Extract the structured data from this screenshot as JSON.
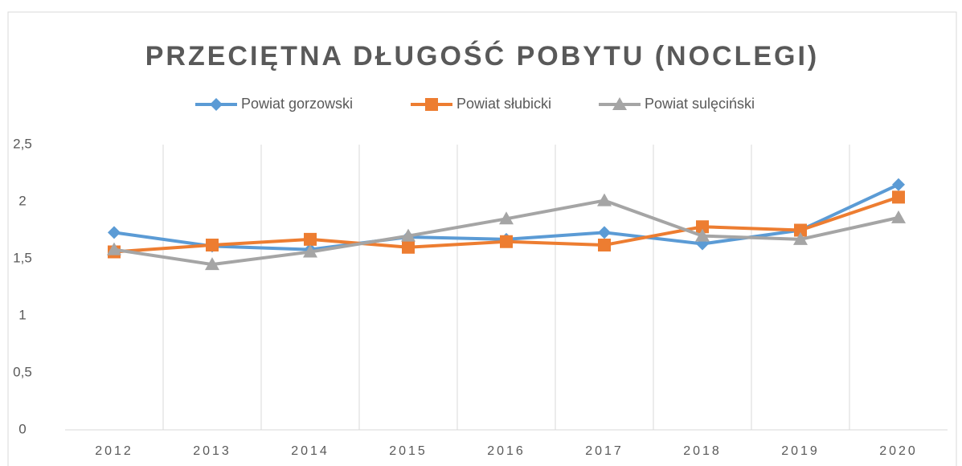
{
  "chart_data": {
    "type": "line",
    "title": "PRZECIĘTNA DŁUGOŚĆ POBYTU (NOCLEGI)",
    "categories": [
      "2012",
      "2013",
      "2014",
      "2015",
      "2016",
      "2017",
      "2018",
      "2019",
      "2020"
    ],
    "series": [
      {
        "name": "Powiat gorzowski",
        "color": "#5b9bd5",
        "marker": "diamond",
        "values": [
          1.73,
          1.61,
          1.58,
          1.69,
          1.67,
          1.73,
          1.63,
          1.75,
          2.15
        ]
      },
      {
        "name": "Powiat słubicki",
        "color": "#ed7d31",
        "marker": "square",
        "values": [
          1.56,
          1.62,
          1.67,
          1.6,
          1.65,
          1.62,
          1.78,
          1.75,
          2.04
        ]
      },
      {
        "name": "Powiat sulęciński",
        "color": "#a5a5a5",
        "marker": "triangle",
        "values": [
          1.58,
          1.45,
          1.56,
          1.7,
          1.85,
          2.01,
          1.7,
          1.67,
          1.86
        ]
      }
    ],
    "ylim": [
      0,
      2.5
    ],
    "yticks": [
      0,
      {
        "value": 0.5,
        "label": "0,5"
      },
      1,
      {
        "value": 1.5,
        "label": "1,5"
      },
      2,
      {
        "value": 2.5,
        "label": "2,5"
      }
    ],
    "grid": true,
    "legend": "top"
  }
}
